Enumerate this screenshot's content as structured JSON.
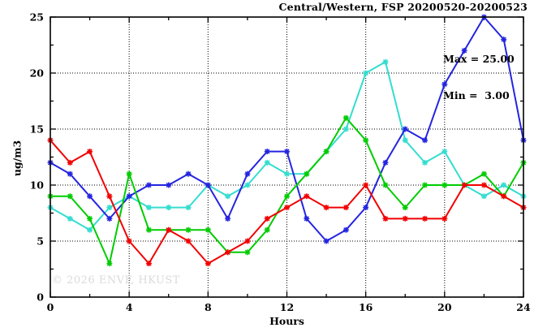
{
  "header": {
    "title": "Central/Western, FSP 20200520-20200523"
  },
  "annotations": {
    "max_line": "Max = 25.00",
    "min_line": "Min =  3.00"
  },
  "watermark": "© 2026 ENVF, HKUST",
  "chart_data": {
    "type": "line",
    "title": "Central/Western, FSP 20200520-20200523",
    "xlabel": "Hours",
    "ylabel": "ug/m3",
    "xlim": [
      0,
      24
    ],
    "ylim": [
      0,
      25
    ],
    "xticks": [
      0,
      4,
      8,
      12,
      16,
      20,
      24
    ],
    "xticks_minor": [
      2,
      6,
      10,
      14,
      18,
      22
    ],
    "yticks": [
      0,
      5,
      10,
      15,
      20,
      25
    ],
    "yticks_minor": [
      2.5,
      7.5,
      12.5,
      17.5,
      22.5
    ],
    "grid": {
      "x_at": [
        4,
        8,
        12,
        16,
        20
      ],
      "y_at": [
        5,
        10,
        15,
        20
      ],
      "style": "dotted"
    },
    "stats": {
      "max": 25.0,
      "min": 3.0
    },
    "marker": "asterisk",
    "x": [
      0,
      1,
      2,
      3,
      4,
      5,
      6,
      7,
      8,
      9,
      10,
      11,
      12,
      13,
      14,
      15,
      16,
      17,
      18,
      19,
      20,
      21,
      22,
      23,
      24
    ],
    "series": [
      {
        "name": "cyan-series",
        "color": "#33ddcf",
        "values": [
          8,
          7,
          6,
          8,
          9,
          8,
          8,
          8,
          10,
          9,
          10,
          12,
          11,
          11,
          13,
          15,
          20,
          21,
          14,
          12,
          13,
          10,
          9,
          10,
          9
        ]
      },
      {
        "name": "blue-series",
        "color": "#2424e0",
        "values": [
          12,
          11,
          9,
          7,
          9,
          10,
          10,
          11,
          10,
          7,
          11,
          13,
          13,
          7,
          5,
          6,
          8,
          12,
          15,
          14,
          19,
          22,
          25,
          23,
          14
        ]
      },
      {
        "name": "green-series",
        "color": "#00cc00",
        "values": [
          9,
          9,
          7,
          3,
          11,
          6,
          6,
          6,
          6,
          4,
          4,
          6,
          9,
          11,
          13,
          16,
          14,
          10,
          8,
          10,
          10,
          10,
          11,
          9,
          12
        ]
      },
      {
        "name": "red-series",
        "color": "#f20000",
        "values": [
          14,
          12,
          13,
          9,
          5,
          3,
          6,
          5,
          3,
          4,
          5,
          7,
          8,
          9,
          8,
          8,
          10,
          7,
          7,
          7,
          7,
          10,
          10,
          9,
          8
        ]
      }
    ]
  }
}
